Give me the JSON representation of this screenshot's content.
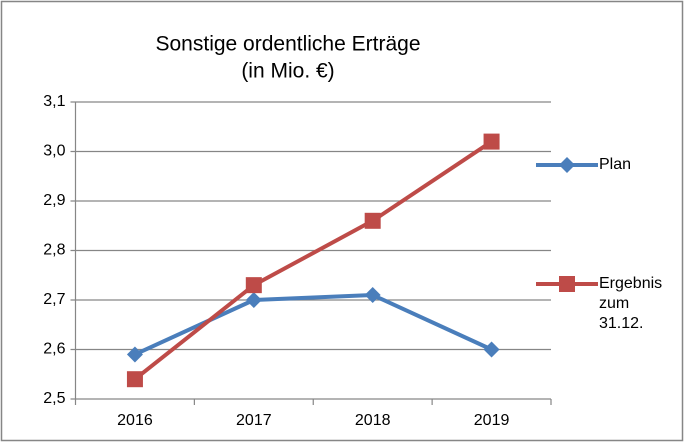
{
  "chart_data": {
    "type": "line",
    "title": "Sonstige ordentliche Erträge",
    "subtitle": "(in Mio. €)",
    "categories": [
      "2016",
      "2017",
      "2018",
      "2019"
    ],
    "series": [
      {
        "name": "Plan",
        "color": "#4a7ebb",
        "marker": "diamond",
        "values": [
          2.59,
          2.7,
          2.71,
          2.6
        ]
      },
      {
        "name": "Ergebnis zum 31.12.",
        "color": "#be4b48",
        "marker": "square",
        "values": [
          2.54,
          2.73,
          2.86,
          3.02
        ]
      }
    ],
    "ylim": [
      2.5,
      3.1
    ],
    "yticks": [
      {
        "value": 2.5,
        "label": "2,5"
      },
      {
        "value": 2.6,
        "label": "2,6"
      },
      {
        "value": 2.7,
        "label": "2,7"
      },
      {
        "value": 2.8,
        "label": "2,8"
      },
      {
        "value": 2.9,
        "label": "2,9"
      },
      {
        "value": 3.0,
        "label": "3,0"
      },
      {
        "value": 3.1,
        "label": "3,1"
      }
    ],
    "grid": true,
    "legend": "right"
  }
}
